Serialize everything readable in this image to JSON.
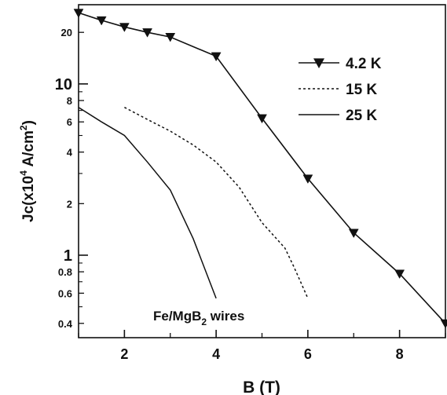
{
  "chart_data": {
    "type": "line",
    "xlabel": "B (T)",
    "ylabel_main": "Jc(x10",
    "ylabel_exp": "4",
    "ylabel_unit": " A/cm",
    "ylabel_sup2": "2",
    "ylabel_close": ")",
    "xlim": [
      1,
      9
    ],
    "ylim": [
      0.33,
      29
    ],
    "y_scale": "log",
    "x_ticks": [
      2,
      4,
      6,
      8
    ],
    "y_ticks_major": [
      1,
      10
    ],
    "y_ticks_minor": [
      0.4,
      0.6,
      0.8,
      2,
      4,
      6,
      8,
      20
    ],
    "annotation_main": "Fe/MgB",
    "annotation_sub": "2",
    "annotation_tail": " wires",
    "legend_position": "top-right",
    "series": [
      {
        "name": "4.2 K",
        "style": "solid-triangle-down",
        "x": [
          1.0,
          1.5,
          2.0,
          2.5,
          3.0,
          4.0,
          5.0,
          6.0,
          7.0,
          8.0,
          9.0
        ],
        "y": [
          26.0,
          23.5,
          21.5,
          20.0,
          18.8,
          14.5,
          6.3,
          2.8,
          1.35,
          0.78,
          0.4
        ]
      },
      {
        "name": "15 K",
        "style": "dotted",
        "x": [
          2.0,
          2.5,
          3.0,
          3.5,
          4.0,
          4.5,
          5.0,
          5.5,
          5.7,
          6.0
        ],
        "y": [
          7.3,
          6.2,
          5.3,
          4.4,
          3.5,
          2.5,
          1.55,
          1.1,
          0.85,
          0.56
        ]
      },
      {
        "name": "25 K",
        "style": "solid",
        "x": [
          1.0,
          1.5,
          2.0,
          2.5,
          3.0,
          3.5,
          4.0
        ],
        "y": [
          7.3,
          6.0,
          5.0,
          3.5,
          2.4,
          1.25,
          0.56
        ]
      }
    ]
  }
}
